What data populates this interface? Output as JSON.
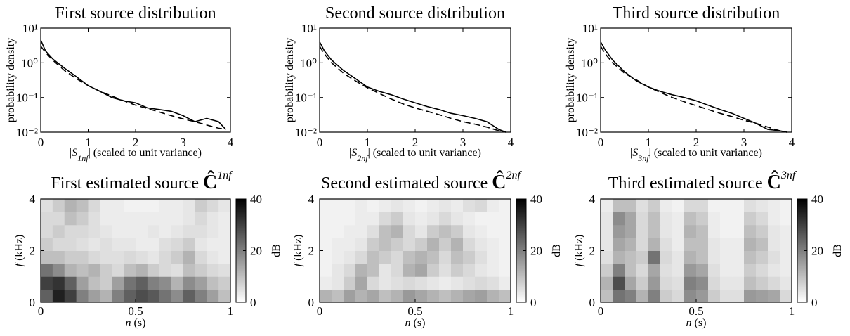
{
  "chart_data": [
    {
      "type": "line",
      "title": "First source distribution",
      "ylabel": "probability density",
      "xlabel_parts": [
        "|",
        "S",
        "1nf",
        "| (scaled to unit variance)"
      ],
      "x": [
        0,
        0.1,
        0.25,
        0.5,
        0.75,
        1,
        1.25,
        1.5,
        1.75,
        2,
        2.25,
        2.5,
        2.75,
        3,
        3.25,
        3.5,
        3.75,
        3.9
      ],
      "series": [
        {
          "color": "#000000",
          "dash": false,
          "values": [
            4.5,
            2.2,
            1.3,
            0.7,
            0.4,
            0.22,
            0.15,
            0.1,
            0.08,
            0.07,
            0.05,
            0.045,
            0.04,
            0.03,
            0.02,
            0.025,
            0.02,
            0.012
          ]
        },
        {
          "color": "#000000",
          "dash": true,
          "values": [
            3,
            2,
            1.2,
            0.6,
            0.35,
            0.22,
            0.15,
            0.11,
            0.08,
            0.06,
            0.048,
            0.038,
            0.03,
            0.024,
            0.02,
            0.016,
            0.013,
            0.012
          ]
        }
      ],
      "xlim": [
        0,
        4
      ],
      "ylim": [
        0.01,
        10
      ],
      "log_y": true,
      "xticks": [
        0,
        1,
        2,
        3,
        4
      ],
      "yticks": [
        {
          "value": 0.01,
          "label": "10⁻²"
        },
        {
          "value": 0.1,
          "label": "10⁻¹"
        },
        {
          "value": 1,
          "label": "10⁰"
        },
        {
          "value": 10,
          "label": "10¹"
        }
      ]
    },
    {
      "type": "line",
      "title": "Second source distribution",
      "ylabel": "probability density",
      "xlabel_parts": [
        "|",
        "S",
        "2nf",
        "| (scaled to unit variance)"
      ],
      "x": [
        0,
        0.1,
        0.25,
        0.5,
        0.75,
        1,
        1.25,
        1.5,
        1.75,
        2,
        2.25,
        2.5,
        2.75,
        3,
        3.25,
        3.5,
        3.75,
        3.9
      ],
      "series": [
        {
          "color": "#000000",
          "dash": false,
          "values": [
            4,
            2.2,
            1.2,
            0.6,
            0.35,
            0.2,
            0.15,
            0.12,
            0.09,
            0.07,
            0.055,
            0.045,
            0.035,
            0.03,
            0.025,
            0.02,
            0.012,
            0.01
          ]
        },
        {
          "color": "#000000",
          "dash": true,
          "values": [
            3,
            1.8,
            1,
            0.5,
            0.3,
            0.19,
            0.13,
            0.09,
            0.065,
            0.05,
            0.04,
            0.032,
            0.025,
            0.02,
            0.017,
            0.014,
            0.011,
            0.01
          ]
        }
      ],
      "xlim": [
        0,
        4
      ],
      "ylim": [
        0.01,
        10
      ],
      "log_y": true,
      "xticks": [
        0,
        1,
        2,
        3,
        4
      ],
      "yticks": [
        {
          "value": 0.01,
          "label": "10⁻²"
        },
        {
          "value": 0.1,
          "label": "10⁻¹"
        },
        {
          "value": 1,
          "label": "10⁰"
        },
        {
          "value": 10,
          "label": "10¹"
        }
      ]
    },
    {
      "type": "line",
      "title": "Third source distribution",
      "ylabel": "probability density",
      "xlabel_parts": [
        "|",
        "S",
        "3nf",
        "| (scaled to unit variance)"
      ],
      "x": [
        0,
        0.1,
        0.25,
        0.5,
        0.75,
        1,
        1.25,
        1.5,
        1.75,
        2,
        2.25,
        2.5,
        2.75,
        3,
        3.25,
        3.5,
        3.75,
        3.9
      ],
      "series": [
        {
          "color": "#000000",
          "dash": false,
          "values": [
            4,
            2.3,
            1.2,
            0.55,
            0.3,
            0.2,
            0.15,
            0.12,
            0.1,
            0.08,
            0.06,
            0.045,
            0.035,
            0.025,
            0.018,
            0.012,
            0.011,
            0.01
          ]
        },
        {
          "color": "#000000",
          "dash": true,
          "values": [
            3,
            1.8,
            1,
            0.5,
            0.32,
            0.2,
            0.14,
            0.1,
            0.075,
            0.058,
            0.045,
            0.035,
            0.028,
            0.022,
            0.018,
            0.014,
            0.011,
            0.01
          ]
        }
      ],
      "xlim": [
        0,
        4
      ],
      "ylim": [
        0.01,
        10
      ],
      "log_y": true,
      "xticks": [
        0,
        1,
        2,
        3,
        4
      ],
      "yticks": [
        {
          "value": 0.01,
          "label": "10⁻²"
        },
        {
          "value": 0.1,
          "label": "10⁻¹"
        },
        {
          "value": 1,
          "label": "10⁰"
        },
        {
          "value": 10,
          "label": "10¹"
        }
      ]
    },
    {
      "type": "heatmap",
      "title_parts": [
        "First estimated source ",
        "Ĉ",
        "1nf"
      ],
      "ylabel_parts": [
        "f",
        " (kHz)"
      ],
      "xlabel_parts": [
        "n",
        " (s)"
      ],
      "xlim": [
        0,
        1
      ],
      "ylim": [
        0,
        4
      ],
      "xticks": [
        0,
        0.5,
        1
      ],
      "yticks": [
        0,
        2,
        4
      ],
      "zlim": [
        0,
        40
      ],
      "zticks": [
        0,
        20,
        40
      ],
      "colorbar_label": "dB",
      "colormap": [
        "#ffffff",
        "#000000"
      ],
      "z": [
        [
          25,
          35,
          30,
          20,
          15,
          12,
          20,
          25,
          28,
          26,
          22,
          18,
          25,
          20,
          15,
          10
        ],
        [
          30,
          32,
          25,
          15,
          10,
          8,
          15,
          22,
          25,
          20,
          18,
          12,
          18,
          15,
          10,
          8
        ],
        [
          22,
          18,
          12,
          10,
          12,
          8,
          6,
          10,
          12,
          8,
          6,
          5,
          10,
          8,
          6,
          5
        ],
        [
          10,
          10,
          8,
          8,
          6,
          5,
          5,
          6,
          5,
          4,
          6,
          8,
          12,
          6,
          4,
          3
        ],
        [
          8,
          6,
          6,
          5,
          4,
          5,
          4,
          4,
          3,
          3,
          5,
          6,
          8,
          4,
          3,
          3
        ],
        [
          6,
          8,
          6,
          6,
          5,
          4,
          3,
          3,
          3,
          4,
          3,
          4,
          5,
          5,
          4,
          3
        ],
        [
          6,
          6,
          10,
          8,
          5,
          3,
          3,
          3,
          3,
          3,
          3,
          3,
          4,
          6,
          4,
          3
        ],
        [
          5,
          8,
          12,
          10,
          6,
          3,
          3,
          2,
          2,
          2,
          3,
          3,
          4,
          8,
          6,
          4
        ]
      ]
    },
    {
      "type": "heatmap",
      "title_parts": [
        "Second estimated source ",
        "Ĉ",
        "2nf"
      ],
      "ylabel_parts": [
        "f",
        " (kHz)"
      ],
      "xlabel_parts": [
        "n",
        " (s)"
      ],
      "xlim": [
        0,
        1
      ],
      "ylim": [
        0,
        4
      ],
      "xticks": [
        0,
        0.5,
        1
      ],
      "yticks": [
        0,
        2,
        4
      ],
      "zlim": [
        0,
        40
      ],
      "zticks": [
        0,
        20,
        40
      ],
      "colorbar_label": "dB",
      "colormap": [
        "#ffffff",
        "#000000"
      ],
      "z": [
        [
          12,
          10,
          15,
          12,
          14,
          10,
          12,
          16,
          14,
          12,
          10,
          12,
          14,
          15,
          12,
          10
        ],
        [
          3,
          4,
          8,
          14,
          6,
          4,
          5,
          6,
          5,
          4,
          3,
          4,
          5,
          6,
          5,
          3
        ],
        [
          2,
          4,
          6,
          12,
          10,
          4,
          6,
          12,
          14,
          8,
          5,
          8,
          6,
          4,
          3,
          2
        ],
        [
          2,
          3,
          4,
          6,
          10,
          8,
          6,
          10,
          12,
          10,
          6,
          10,
          8,
          5,
          3,
          2
        ],
        [
          2,
          3,
          3,
          4,
          8,
          10,
          8,
          6,
          8,
          12,
          8,
          12,
          6,
          4,
          3,
          2
        ],
        [
          2,
          2,
          3,
          3,
          5,
          10,
          12,
          6,
          4,
          8,
          10,
          8,
          4,
          3,
          2,
          2
        ],
        [
          2,
          2,
          2,
          3,
          3,
          6,
          8,
          4,
          3,
          4,
          6,
          4,
          3,
          2,
          2,
          2
        ],
        [
          2,
          2,
          2,
          3,
          2,
          3,
          4,
          3,
          2,
          3,
          4,
          3,
          5,
          6,
          3,
          2
        ]
      ]
    },
    {
      "type": "heatmap",
      "title_parts": [
        "Third estimated source ",
        "Ĉ",
        "3nf"
      ],
      "ylabel_parts": [
        "f",
        " (kHz)"
      ],
      "xlabel_parts": [
        "n",
        " (s)"
      ],
      "xlim": [
        0,
        1
      ],
      "ylim": [
        0,
        4
      ],
      "xticks": [
        0,
        0.5,
        1
      ],
      "yticks": [
        0,
        2,
        4
      ],
      "zlim": [
        0,
        40
      ],
      "zticks": [
        0,
        20,
        40
      ],
      "colorbar_label": "dB",
      "colormap": [
        "#ffffff",
        "#000000"
      ],
      "z": [
        [
          10,
          22,
          20,
          12,
          20,
          8,
          6,
          18,
          16,
          8,
          5,
          5,
          16,
          15,
          14,
          6
        ],
        [
          12,
          28,
          14,
          8,
          16,
          6,
          5,
          20,
          18,
          6,
          4,
          4,
          10,
          8,
          6,
          4
        ],
        [
          8,
          20,
          10,
          6,
          14,
          5,
          4,
          16,
          14,
          5,
          3,
          3,
          8,
          6,
          4,
          3
        ],
        [
          5,
          12,
          10,
          8,
          22,
          6,
          4,
          12,
          10,
          4,
          3,
          3,
          10,
          8,
          5,
          3
        ],
        [
          4,
          14,
          12,
          6,
          12,
          5,
          3,
          10,
          10,
          4,
          3,
          3,
          12,
          10,
          4,
          3
        ],
        [
          4,
          16,
          14,
          6,
          10,
          4,
          3,
          12,
          10,
          3,
          2,
          2,
          10,
          8,
          4,
          3
        ],
        [
          4,
          18,
          14,
          6,
          10,
          4,
          3,
          10,
          8,
          3,
          2,
          2,
          8,
          6,
          3,
          2
        ],
        [
          3,
          10,
          10,
          5,
          8,
          3,
          2,
          6,
          6,
          2,
          2,
          2,
          5,
          4,
          3,
          2
        ]
      ]
    }
  ]
}
